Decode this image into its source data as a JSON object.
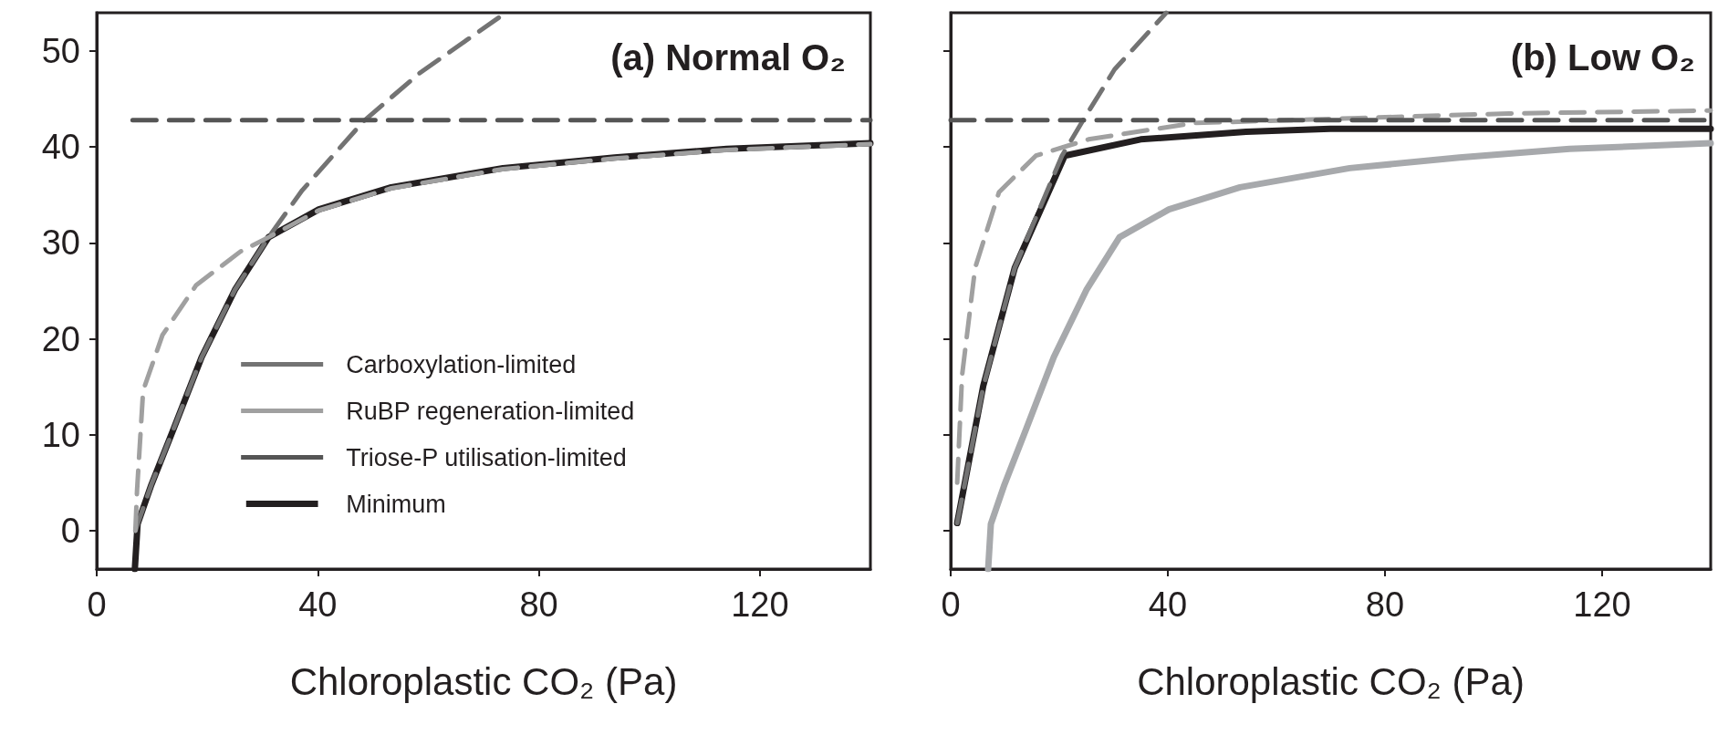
{
  "chart_data": [
    {
      "type": "line",
      "title": "(a) Normal O₂",
      "xlabel": "Chloroplastic CO₂ (Pa)",
      "xlim": [
        0,
        140
      ],
      "xticks": [
        0,
        40,
        80,
        120
      ],
      "ylim": [
        -4,
        54
      ],
      "yticks": [
        0,
        10,
        20,
        30,
        40,
        50
      ],
      "grid": false,
      "legend": "bottom",
      "marker": "none",
      "series": [
        {
          "name": "Carboxylation-limited",
          "color": "#737373",
          "line_style": "dashed",
          "x": [
            7,
            7.4,
            9.9,
            13.9,
            19,
            25,
            31.1,
            37.2,
            48.3,
            58.4,
            74
          ],
          "values": [
            0,
            0.7,
            4.8,
            10.6,
            18.1,
            25.1,
            30.6,
            35.5,
            42.7,
            47.7,
            54
          ]
        },
        {
          "name": "RuBP regeneration-limited",
          "color": "#a0a0a0",
          "line_style": "dashed",
          "x": [
            7,
            7.3,
            8.4,
            11.9,
            18,
            26,
            31.1,
            40.2,
            53.3,
            73.5,
            93.7,
            114,
            140
          ],
          "values": [
            0,
            4.2,
            14.6,
            20.4,
            25.6,
            29.1,
            30.6,
            33.4,
            35.7,
            37.7,
            38.8,
            39.7,
            40.3
          ]
        },
        {
          "name": "Triose-P utilisation-limited",
          "color": "#555555",
          "line_style": "dashed",
          "x": [
            6.5,
            140
          ],
          "values": [
            42.8,
            42.8
          ]
        },
        {
          "name": "Minimum",
          "color": "#231f20",
          "line_style": "solid",
          "x": [
            6.9,
            7.4,
            9.9,
            13.9,
            19,
            25,
            31.1,
            40.2,
            53.3,
            73.5,
            93.7,
            114,
            140
          ],
          "values": [
            -4,
            0.7,
            4.8,
            10.6,
            18.1,
            25.1,
            30.6,
            33.5,
            35.8,
            37.8,
            38.9,
            39.8,
            40.4
          ]
        }
      ]
    },
    {
      "type": "line",
      "title": "(b) Low O₂",
      "xlabel": "Chloroplastic CO₂ (Pa)",
      "xlim": [
        0,
        140
      ],
      "xticks": [
        0,
        40,
        80,
        120
      ],
      "ylim": [
        -4,
        54
      ],
      "yticks": [
        0,
        10,
        20,
        30,
        40,
        50
      ],
      "grid": false,
      "legend": false,
      "marker": "none",
      "tick_labels": "x",
      "series": [
        {
          "color": "#a7a9ac",
          "line_style": "solid",
          "x": [
            6.9,
            7.4,
            9.9,
            13.9,
            19,
            25,
            31.1,
            40.2,
            53.3,
            73.5,
            93.7,
            114,
            140
          ],
          "values": [
            -4,
            0.7,
            4.8,
            10.6,
            18.1,
            25.1,
            30.6,
            33.5,
            35.8,
            37.8,
            38.9,
            39.8,
            40.4
          ]
        },
        {
          "color": "#737373",
          "line_style": "dashed",
          "x": [
            1.2,
            6,
            11.8,
            20.5,
            24.4,
            30.2,
            39.7
          ],
          "values": [
            0.8,
            15,
            27.4,
            39.1,
            42.8,
            48.1,
            54
          ]
        },
        {
          "color": "#a0a0a0",
          "line_style": "dashed",
          "x": [
            1.2,
            2.1,
            4.5,
            8.9,
            15.7,
            25.4,
            44.7,
            73.8,
            102.8,
            140
          ],
          "values": [
            5,
            16.2,
            27.4,
            35.3,
            39.1,
            40.8,
            42.5,
            43,
            43.5,
            43.8
          ]
        },
        {
          "color": "#555555",
          "line_style": "dashed",
          "x": [
            0,
            140
          ],
          "values": [
            42.8,
            42.8
          ]
        },
        {
          "color": "#231f20",
          "line_style": "solid",
          "x": [
            1.2,
            6,
            11.8,
            21,
            35,
            54.4,
            69.9,
            140
          ],
          "values": [
            0.8,
            15.1,
            27.4,
            39.1,
            40.8,
            41.6,
            41.9,
            41.9
          ]
        }
      ]
    }
  ]
}
